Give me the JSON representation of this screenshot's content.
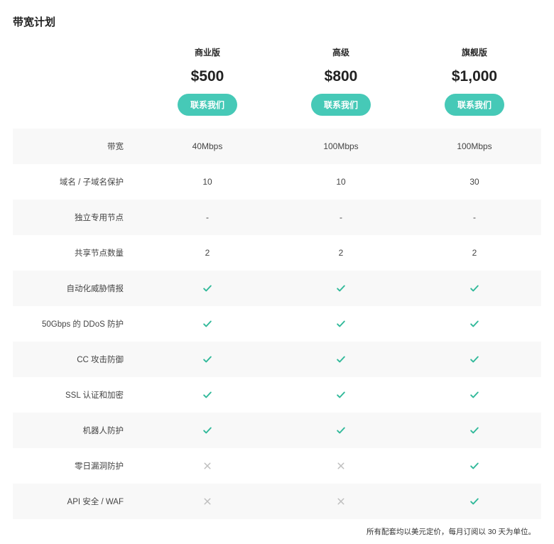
{
  "title": "带宽计划",
  "plans": [
    {
      "name": "商业版",
      "price": "$500",
      "cta": "联系我们"
    },
    {
      "name": "高级",
      "price": "$800",
      "cta": "联系我们"
    },
    {
      "name": "旗舰版",
      "price": "$1,000",
      "cta": "联系我们"
    }
  ],
  "features": [
    {
      "label": "带宽",
      "values": [
        "40Mbps",
        "100Mbps",
        "100Mbps"
      ],
      "alt": true
    },
    {
      "label": "域名 / 子域名保护",
      "values": [
        "10",
        "10",
        "30"
      ],
      "alt": false
    },
    {
      "label": "独立专用节点",
      "values": [
        "-",
        "-",
        "-"
      ],
      "alt": true
    },
    {
      "label": "共享节点数量",
      "values": [
        "2",
        "2",
        "2"
      ],
      "alt": false
    },
    {
      "label": "自动化威胁情报",
      "values": [
        "check",
        "check",
        "check"
      ],
      "alt": true
    },
    {
      "label": "50Gbps 的 DDoS 防护",
      "values": [
        "check",
        "check",
        "check"
      ],
      "alt": false
    },
    {
      "label": "CC 攻击防御",
      "values": [
        "check",
        "check",
        "check"
      ],
      "alt": true
    },
    {
      "label": "SSL 认证和加密",
      "values": [
        "check",
        "check",
        "check"
      ],
      "alt": false
    },
    {
      "label": "机器人防护",
      "values": [
        "check",
        "check",
        "check"
      ],
      "alt": true
    },
    {
      "label": "零日漏洞防护",
      "values": [
        "x",
        "x",
        "check"
      ],
      "alt": false
    },
    {
      "label": "API 安全 / WAF",
      "values": [
        "x",
        "x",
        "check"
      ],
      "alt": true
    }
  ],
  "footnote": "所有配套均以美元定价，每月订阅以 30 天为单位。",
  "colors": {
    "accent": "#46c9b7",
    "check": "#31b99a",
    "x": "#bfbfbf",
    "row_alt_bg": "#f8f8f8",
    "text": "#2d2d2d"
  }
}
